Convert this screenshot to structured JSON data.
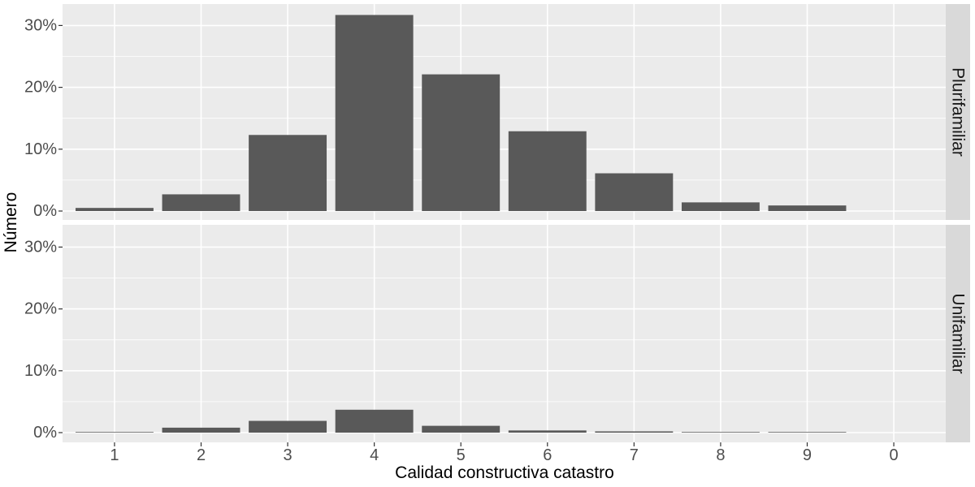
{
  "chart_data": {
    "type": "bar",
    "xlabel": "Calidad constructiva catastro",
    "ylabel": "Número",
    "categories": [
      "1",
      "2",
      "3",
      "4",
      "5",
      "6",
      "7",
      "8",
      "9",
      "0"
    ],
    "y_ticks": [
      "0%",
      "10%",
      "20%",
      "30%"
    ],
    "ylim": [
      0,
      32.5
    ],
    "grid": true,
    "legend": "none",
    "bar_color": "#595959",
    "panel_color": "#ebebeb",
    "strip_color": "#d9d9d9",
    "facets": [
      {
        "name": "Plurifamiliar",
        "values": [
          0.5,
          2.7,
          12.3,
          31.7,
          22.1,
          12.9,
          6.1,
          1.4,
          0.9,
          0
        ]
      },
      {
        "name": "Unifamiliar",
        "values": [
          0.1,
          0.8,
          1.9,
          3.7,
          1.1,
          0.35,
          0.2,
          0.1,
          0.1,
          0
        ]
      }
    ]
  }
}
